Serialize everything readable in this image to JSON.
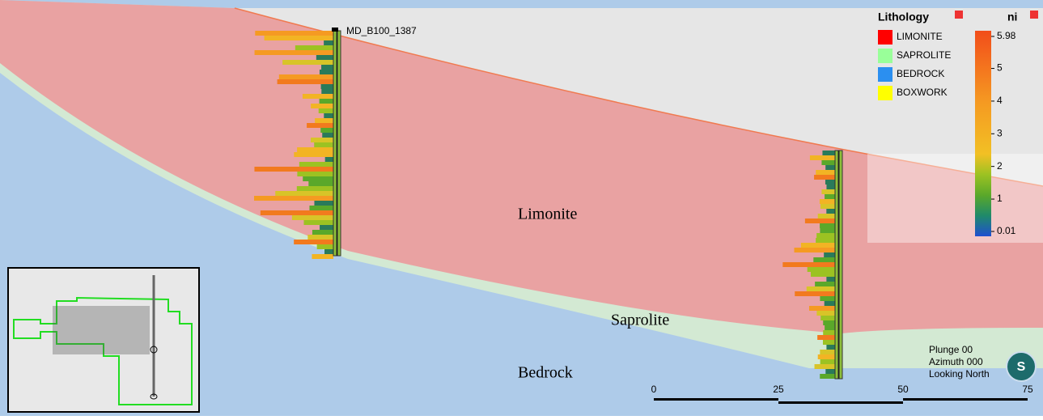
{
  "section": {
    "units": [
      "Limonite",
      "Saprolite",
      "Bedrock"
    ],
    "hole": "MD_B100_1387"
  },
  "legend": {
    "title": "Lithology",
    "items": [
      {
        "label": "LIMONITE",
        "color": "#ff0000"
      },
      {
        "label": "SAPROLITE",
        "color": "#99ff99"
      },
      {
        "label": "BEDROCK",
        "color": "#2b8ff0"
      },
      {
        "label": "BOXWORK",
        "color": "#ffff00"
      }
    ]
  },
  "colorbar": {
    "title": "ni",
    "ticks": [
      5.98,
      5,
      4,
      3,
      2,
      1,
      0.01
    ]
  },
  "scalebar": {
    "ticks": [
      0,
      25,
      50,
      75
    ]
  },
  "view": {
    "lines": [
      "Plunge 00",
      "Azimuth 000",
      "Looking North"
    ],
    "compass": "S"
  }
}
